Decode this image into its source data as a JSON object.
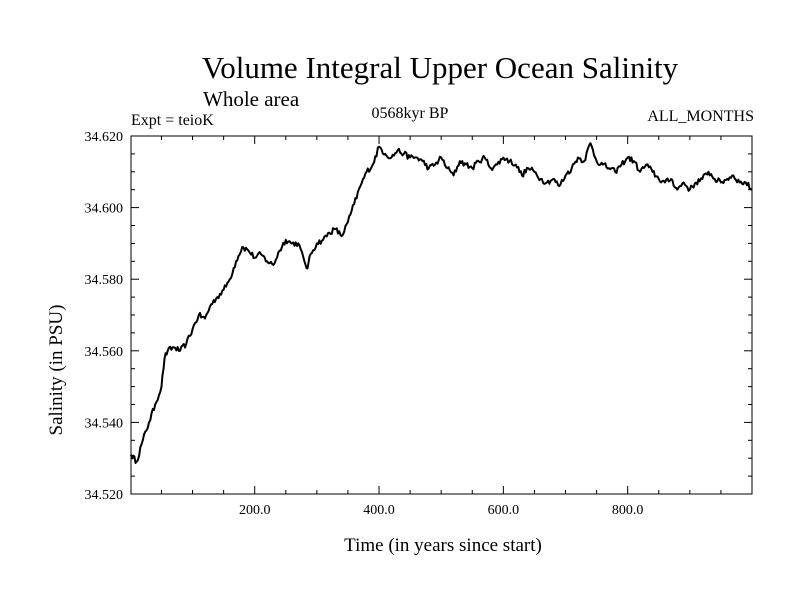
{
  "chart_data": {
    "type": "line",
    "title": "Volume Integral Upper Ocean Salinity",
    "subtitle": "Whole area",
    "experiment_label": "Expt = teioK",
    "period_label": "0568kyr BP",
    "months_label": "ALL_MONTHS",
    "xlabel": "Time (in years since start)",
    "ylabel": "Salinity (in PSU)",
    "xlim": [
      1,
      1000
    ],
    "ylim": [
      34.52,
      34.62
    ],
    "xticks": [
      200,
      400,
      600,
      800
    ],
    "xtick_labels": [
      "200.0",
      "400.0",
      "600.0",
      "800.0"
    ],
    "yticks": [
      34.52,
      34.54,
      34.56,
      34.58,
      34.6,
      34.62
    ],
    "ytick_labels": [
      "34.520",
      "34.540",
      "34.560",
      "34.580",
      "34.600",
      "34.620"
    ],
    "series": [
      {
        "name": "Salinity",
        "color": "#000000",
        "x": [
          1,
          10,
          20,
          30,
          40,
          50,
          55,
          60,
          70,
          80,
          90,
          100,
          110,
          120,
          130,
          140,
          150,
          160,
          170,
          180,
          190,
          200,
          210,
          220,
          230,
          240,
          250,
          260,
          270,
          280,
          285,
          290,
          300,
          310,
          320,
          330,
          340,
          350,
          360,
          370,
          380,
          390,
          400,
          410,
          420,
          430,
          440,
          450,
          460,
          470,
          480,
          490,
          500,
          510,
          520,
          530,
          540,
          550,
          560,
          570,
          580,
          590,
          600,
          610,
          620,
          630,
          640,
          650,
          660,
          670,
          680,
          690,
          700,
          710,
          720,
          730,
          740,
          750,
          760,
          770,
          780,
          790,
          800,
          810,
          820,
          830,
          840,
          850,
          860,
          870,
          880,
          890,
          900,
          910,
          920,
          930,
          940,
          950,
          960,
          970,
          980,
          990,
          1000
        ],
        "values": [
          34.531,
          34.529,
          34.535,
          34.54,
          34.545,
          34.55,
          34.558,
          34.56,
          34.561,
          34.56,
          34.562,
          34.566,
          34.57,
          34.569,
          34.573,
          34.575,
          34.577,
          34.58,
          34.585,
          34.589,
          34.588,
          34.586,
          34.587,
          34.585,
          34.584,
          34.588,
          34.591,
          34.59,
          34.59,
          34.585,
          34.583,
          34.587,
          34.59,
          34.591,
          34.593,
          34.594,
          34.592,
          34.596,
          34.601,
          34.606,
          34.61,
          34.612,
          34.617,
          34.615,
          34.614,
          34.616,
          34.615,
          34.614,
          34.614,
          34.613,
          34.611,
          34.612,
          34.614,
          34.611,
          34.609,
          34.613,
          34.612,
          34.611,
          34.613,
          34.614,
          34.611,
          34.612,
          34.614,
          34.613,
          34.612,
          34.609,
          34.611,
          34.61,
          34.608,
          34.607,
          34.608,
          34.606,
          34.609,
          34.611,
          34.614,
          34.613,
          34.618,
          34.613,
          34.612,
          34.611,
          34.61,
          34.612,
          34.614,
          34.613,
          34.61,
          34.612,
          34.61,
          34.608,
          34.607,
          34.608,
          34.605,
          34.607,
          34.605,
          34.607,
          34.608,
          34.61,
          34.608,
          34.607,
          34.608,
          34.609,
          34.607,
          34.607,
          34.605
        ]
      }
    ]
  }
}
